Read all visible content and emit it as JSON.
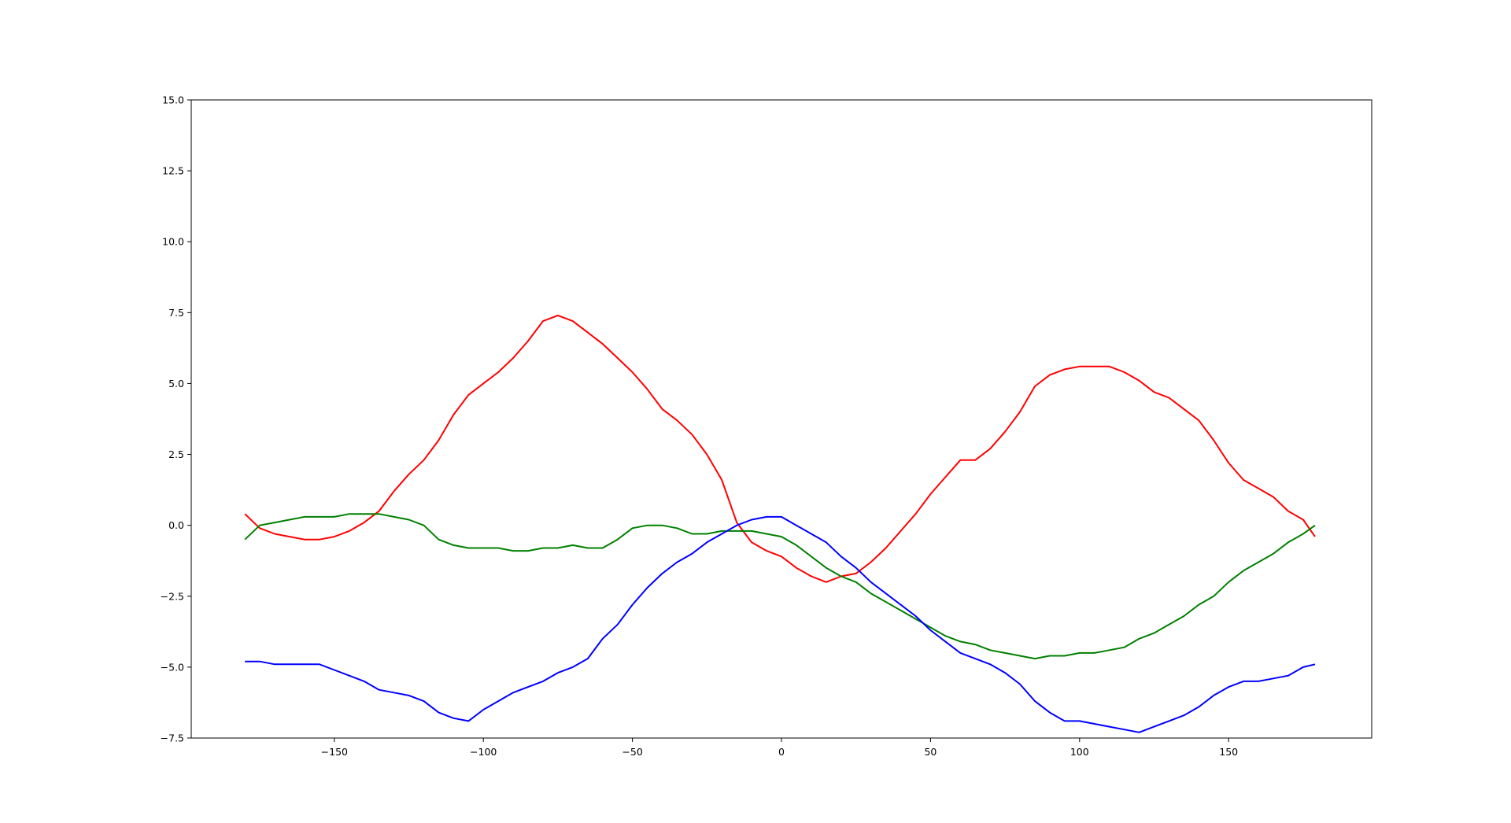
{
  "chart_data": {
    "type": "line",
    "title": "",
    "xlabel": "",
    "ylabel": "",
    "xlim": [
      -198,
      198
    ],
    "ylim": [
      -7.5,
      15.0
    ],
    "grid": false,
    "legend": "none",
    "x_ticks": [
      -150,
      -100,
      -50,
      0,
      50,
      100,
      150
    ],
    "x_tick_labels": [
      "−150",
      "−100",
      "−50",
      "0",
      "50",
      "100",
      "150"
    ],
    "y_ticks": [
      -7.5,
      -5.0,
      -2.5,
      0.0,
      2.5,
      5.0,
      7.5,
      10.0,
      12.5,
      15.0
    ],
    "y_tick_labels": [
      "−7.5",
      "−5.0",
      "−2.5",
      "0.0",
      "2.5",
      "5.0",
      "7.5",
      "10.0",
      "12.5",
      "15.0"
    ],
    "x": [
      -180,
      -175,
      -170,
      -165,
      -160,
      -155,
      -150,
      -145,
      -140,
      -135,
      -130,
      -125,
      -120,
      -115,
      -110,
      -105,
      -100,
      -95,
      -90,
      -85,
      -80,
      -75,
      -70,
      -65,
      -60,
      -55,
      -50,
      -45,
      -40,
      -35,
      -30,
      -25,
      -20,
      -15,
      -10,
      -5,
      0,
      5,
      10,
      15,
      20,
      25,
      30,
      35,
      40,
      45,
      50,
      55,
      60,
      65,
      70,
      75,
      80,
      85,
      90,
      95,
      100,
      105,
      110,
      115,
      120,
      125,
      130,
      135,
      140,
      145,
      150,
      155,
      160,
      165,
      170,
      175,
      179
    ],
    "series": [
      {
        "color": "#ff0000",
        "values": [
          0.4,
          -0.1,
          -0.3,
          -0.4,
          -0.5,
          -0.5,
          -0.4,
          -0.2,
          0.1,
          0.5,
          1.2,
          1.8,
          2.3,
          3.0,
          3.9,
          4.6,
          5.0,
          5.4,
          5.9,
          6.5,
          7.2,
          7.4,
          7.2,
          6.8,
          6.4,
          5.9,
          5.4,
          4.8,
          4.1,
          3.7,
          3.2,
          2.5,
          1.6,
          0.1,
          -0.6,
          -0.9,
          -1.1,
          -1.5,
          -1.8,
          -2.0,
          -1.8,
          -1.7,
          -1.3,
          -0.8,
          -0.2,
          0.4,
          1.1,
          1.7,
          2.3,
          2.3,
          2.7,
          3.3,
          4.0,
          4.9,
          5.3,
          5.5,
          5.6,
          5.6,
          5.6,
          5.4,
          5.1,
          4.7,
          4.5,
          4.1,
          3.7,
          3.0,
          2.2,
          1.6,
          1.3,
          1.0,
          0.5,
          0.2,
          -0.4
        ]
      },
      {
        "color": "#008000",
        "values": [
          -0.5,
          0.0,
          0.1,
          0.2,
          0.3,
          0.3,
          0.3,
          0.4,
          0.4,
          0.4,
          0.3,
          0.2,
          0.0,
          -0.5,
          -0.7,
          -0.8,
          -0.8,
          -0.8,
          -0.9,
          -0.9,
          -0.8,
          -0.8,
          -0.7,
          -0.8,
          -0.8,
          -0.5,
          -0.1,
          0.0,
          0.0,
          -0.1,
          -0.3,
          -0.3,
          -0.2,
          -0.2,
          -0.2,
          -0.3,
          -0.4,
          -0.7,
          -1.1,
          -1.5,
          -1.8,
          -2.0,
          -2.4,
          -2.7,
          -3.0,
          -3.3,
          -3.6,
          -3.9,
          -4.1,
          -4.2,
          -4.4,
          -4.5,
          -4.6,
          -4.7,
          -4.6,
          -4.6,
          -4.5,
          -4.5,
          -4.4,
          -4.3,
          -4.0,
          -3.8,
          -3.5,
          -3.2,
          -2.8,
          -2.5,
          -2.0,
          -1.6,
          -1.3,
          -1.0,
          -0.6,
          -0.3,
          0.0
        ]
      },
      {
        "color": "#0000ff",
        "values": [
          -4.8,
          -4.8,
          -4.9,
          -4.9,
          -4.9,
          -4.9,
          -5.1,
          -5.3,
          -5.5,
          -5.8,
          -5.9,
          -6.0,
          -6.2,
          -6.6,
          -6.8,
          -6.9,
          -6.5,
          -6.2,
          -5.9,
          -5.7,
          -5.5,
          -5.2,
          -5.0,
          -4.7,
          -4.0,
          -3.5,
          -2.8,
          -2.2,
          -1.7,
          -1.3,
          -1.0,
          -0.6,
          -0.3,
          0.0,
          0.2,
          0.3,
          0.3,
          0.0,
          -0.3,
          -0.6,
          -1.1,
          -1.5,
          -2.0,
          -2.4,
          -2.8,
          -3.2,
          -3.7,
          -4.1,
          -4.5,
          -4.7,
          -4.9,
          -5.2,
          -5.6,
          -6.2,
          -6.6,
          -6.9,
          -6.9,
          -7.0,
          -7.1,
          -7.2,
          -7.3,
          -7.1,
          -6.9,
          -6.7,
          -6.4,
          -6.0,
          -5.7,
          -5.5,
          -5.5,
          -5.4,
          -5.3,
          -5.0,
          -4.9
        ]
      }
    ]
  }
}
